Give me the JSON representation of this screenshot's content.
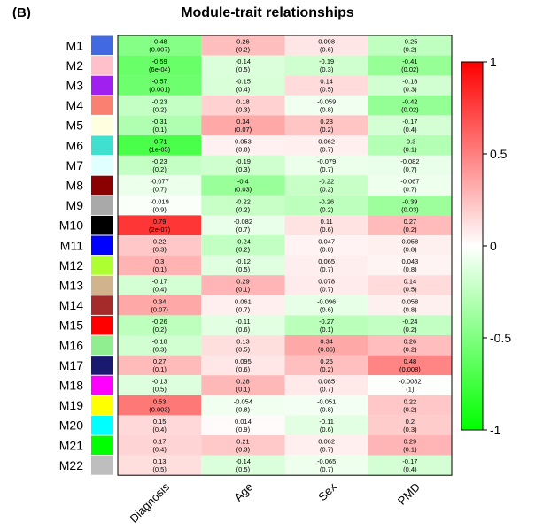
{
  "panel_label": "(B)",
  "chart_data": {
    "type": "heatmap",
    "title": "Module-trait relationships",
    "columns": [
      "Diagnosis",
      "Age",
      "Sex",
      "PMD"
    ],
    "rows": [
      {
        "name": "M1",
        "color": "#4169E1",
        "values": [
          -0.48,
          0.26,
          0.098,
          -0.25
        ],
        "pvalues": [
          "(0.007)",
          "(0.2)",
          "(0.6)",
          "(0.2)"
        ],
        "labels": [
          "-0.48",
          "0.26",
          "0.098",
          "-0.25"
        ]
      },
      {
        "name": "M2",
        "color": "#FFC0CB",
        "values": [
          -0.59,
          -0.14,
          -0.19,
          -0.41
        ],
        "pvalues": [
          "(6e-04)",
          "(0.5)",
          "(0.3)",
          "(0.02)"
        ],
        "labels": [
          "-0.59",
          "-0.14",
          "-0.19",
          "-0.41"
        ]
      },
      {
        "name": "M3",
        "color": "#A020F0",
        "values": [
          -0.57,
          -0.15,
          0.14,
          -0.18
        ],
        "pvalues": [
          "(0.001)",
          "(0.4)",
          "(0.5)",
          "(0.3)"
        ],
        "labels": [
          "-0.57",
          "-0.15",
          "0.14",
          "-0.18"
        ]
      },
      {
        "name": "M4",
        "color": "#FA8072",
        "values": [
          -0.23,
          0.18,
          -0.059,
          -0.42
        ],
        "pvalues": [
          "(0.2)",
          "(0.3)",
          "(0.8)",
          "(0.02)"
        ],
        "labels": [
          "-0.23",
          "0.18",
          "-0.059",
          "-0.42"
        ]
      },
      {
        "name": "M5",
        "color": "#FFFFE0",
        "values": [
          -0.31,
          0.34,
          0.23,
          -0.17
        ],
        "pvalues": [
          "(0.1)",
          "(0.07)",
          "(0.2)",
          "(0.4)"
        ],
        "labels": [
          "-0.31",
          "0.34",
          "0.23",
          "-0.17"
        ]
      },
      {
        "name": "M6",
        "color": "#40E0D0",
        "values": [
          -0.71,
          0.053,
          0.062,
          -0.3
        ],
        "pvalues": [
          "(1e-05)",
          "(0.8)",
          "(0.7)",
          "(0.1)"
        ],
        "labels": [
          "-0.71",
          "0.053",
          "0.062",
          "-0.3"
        ]
      },
      {
        "name": "M7",
        "color": "#E0FFFF",
        "values": [
          -0.23,
          -0.19,
          -0.079,
          -0.082
        ],
        "pvalues": [
          "(0.2)",
          "(0.3)",
          "(0.7)",
          "(0.7)"
        ],
        "labels": [
          "-0.23",
          "-0.19",
          "-0.079",
          "-0.082"
        ]
      },
      {
        "name": "M8",
        "color": "#8B0000",
        "values": [
          -0.077,
          -0.4,
          -0.22,
          -0.067
        ],
        "pvalues": [
          "(0.7)",
          "(0.03)",
          "(0.2)",
          "(0.7)"
        ],
        "labels": [
          "-0.077",
          "-0.4",
          "-0.22",
          "-0.067"
        ]
      },
      {
        "name": "M9",
        "color": "#A9A9A9",
        "values": [
          -0.019,
          -0.22,
          -0.26,
          -0.39
        ],
        "pvalues": [
          "(0.9)",
          "(0.2)",
          "(0.2)",
          "(0.03)"
        ],
        "labels": [
          "-0.019",
          "-0.22",
          "-0.26",
          "-0.39"
        ]
      },
      {
        "name": "M10",
        "color": "#000000",
        "values": [
          0.79,
          -0.082,
          0.11,
          0.27
        ],
        "pvalues": [
          "(2e-07)",
          "(0.7)",
          "(0.6)",
          "(0.2)"
        ],
        "labels": [
          "0.79",
          "-0.082",
          "0.11",
          "0.27"
        ]
      },
      {
        "name": "M11",
        "color": "#0000FF",
        "values": [
          0.22,
          -0.24,
          0.047,
          0.058
        ],
        "pvalues": [
          "(0.3)",
          "(0.2)",
          "(0.8)",
          "(0.8)"
        ],
        "labels": [
          "0.22",
          "-0.24",
          "0.047",
          "0.058"
        ]
      },
      {
        "name": "M12",
        "color": "#ADFF2F",
        "values": [
          0.3,
          -0.12,
          0.065,
          0.043
        ],
        "pvalues": [
          "(0.1)",
          "(0.5)",
          "(0.7)",
          "(0.8)"
        ],
        "labels": [
          "0.3",
          "-0.12",
          "0.065",
          "0.043"
        ]
      },
      {
        "name": "M13",
        "color": "#D2B48C",
        "values": [
          -0.17,
          0.29,
          0.078,
          0.14
        ],
        "pvalues": [
          "(0.4)",
          "(0.1)",
          "(0.7)",
          "(0.5)"
        ],
        "labels": [
          "-0.17",
          "0.29",
          "0.078",
          "0.14"
        ]
      },
      {
        "name": "M14",
        "color": "#A52A2A",
        "values": [
          0.34,
          0.061,
          -0.096,
          0.058
        ],
        "pvalues": [
          "(0.07)",
          "(0.7)",
          "(0.6)",
          "(0.8)"
        ],
        "labels": [
          "0.34",
          "0.061",
          "-0.096",
          "0.058"
        ]
      },
      {
        "name": "M15",
        "color": "#FF0000",
        "values": [
          -0.26,
          -0.11,
          -0.27,
          -0.24
        ],
        "pvalues": [
          "(0.2)",
          "(0.6)",
          "(0.1)",
          "(0.2)"
        ],
        "labels": [
          "-0.26",
          "-0.11",
          "-0.27",
          "-0.24"
        ]
      },
      {
        "name": "M16",
        "color": "#90EE90",
        "values": [
          -0.18,
          0.13,
          0.34,
          0.26
        ],
        "pvalues": [
          "(0.3)",
          "(0.5)",
          "(0.06)",
          "(0.2)"
        ],
        "labels": [
          "-0.18",
          "0.13",
          "0.34",
          "0.26"
        ]
      },
      {
        "name": "M17",
        "color": "#191970",
        "values": [
          0.27,
          0.095,
          0.25,
          0.48
        ],
        "pvalues": [
          "(0.1)",
          "(0.6)",
          "(0.2)",
          "(0.008)"
        ],
        "labels": [
          "0.27",
          "0.095",
          "0.25",
          "0.48"
        ]
      },
      {
        "name": "M18",
        "color": "#FF00FF",
        "values": [
          -0.13,
          0.28,
          0.085,
          -0.0082
        ],
        "pvalues": [
          "(0.5)",
          "(0.1)",
          "(0.7)",
          "(1)"
        ],
        "labels": [
          "-0.13",
          "0.28",
          "0.085",
          "-0.0082"
        ]
      },
      {
        "name": "M19",
        "color": "#FFFF00",
        "values": [
          0.53,
          -0.054,
          -0.051,
          0.22
        ],
        "pvalues": [
          "(0.003)",
          "(0.8)",
          "(0.8)",
          "(0.2)"
        ],
        "labels": [
          "0.53",
          "-0.054",
          "-0.051",
          "0.22"
        ]
      },
      {
        "name": "M20",
        "color": "#00FFFF",
        "values": [
          0.15,
          0.014,
          -0.11,
          0.2
        ],
        "pvalues": [
          "(0.4)",
          "(0.9)",
          "(0.6)",
          "(0.3)"
        ],
        "labels": [
          "0.15",
          "0.014",
          "-0.11",
          "0.2"
        ]
      },
      {
        "name": "M21",
        "color": "#00FF00",
        "values": [
          0.17,
          0.21,
          0.062,
          0.29
        ],
        "pvalues": [
          "(0.4)",
          "(0.3)",
          "(0.7)",
          "(0.1)"
        ],
        "labels": [
          "0.17",
          "0.21",
          "0.062",
          "0.29"
        ]
      },
      {
        "name": "M22",
        "color": "#BEBEBE",
        "values": [
          0.13,
          -0.14,
          -0.065,
          -0.17
        ],
        "pvalues": [
          "(0.5)",
          "(0.5)",
          "(0.7)",
          "(0.4)"
        ],
        "labels": [
          "0.13",
          "-0.14",
          "-0.065",
          "-0.17"
        ]
      }
    ],
    "colorbar": {
      "min": -1,
      "max": 1,
      "ticks": [
        1,
        0.5,
        0,
        -0.5,
        -1
      ],
      "tick_labels": [
        "1",
        "0.5",
        "0",
        "-0.5",
        "-1"
      ],
      "low_color": "#00FF00",
      "mid_color": "#FFFFFF",
      "high_color": "#FF0000"
    }
  }
}
